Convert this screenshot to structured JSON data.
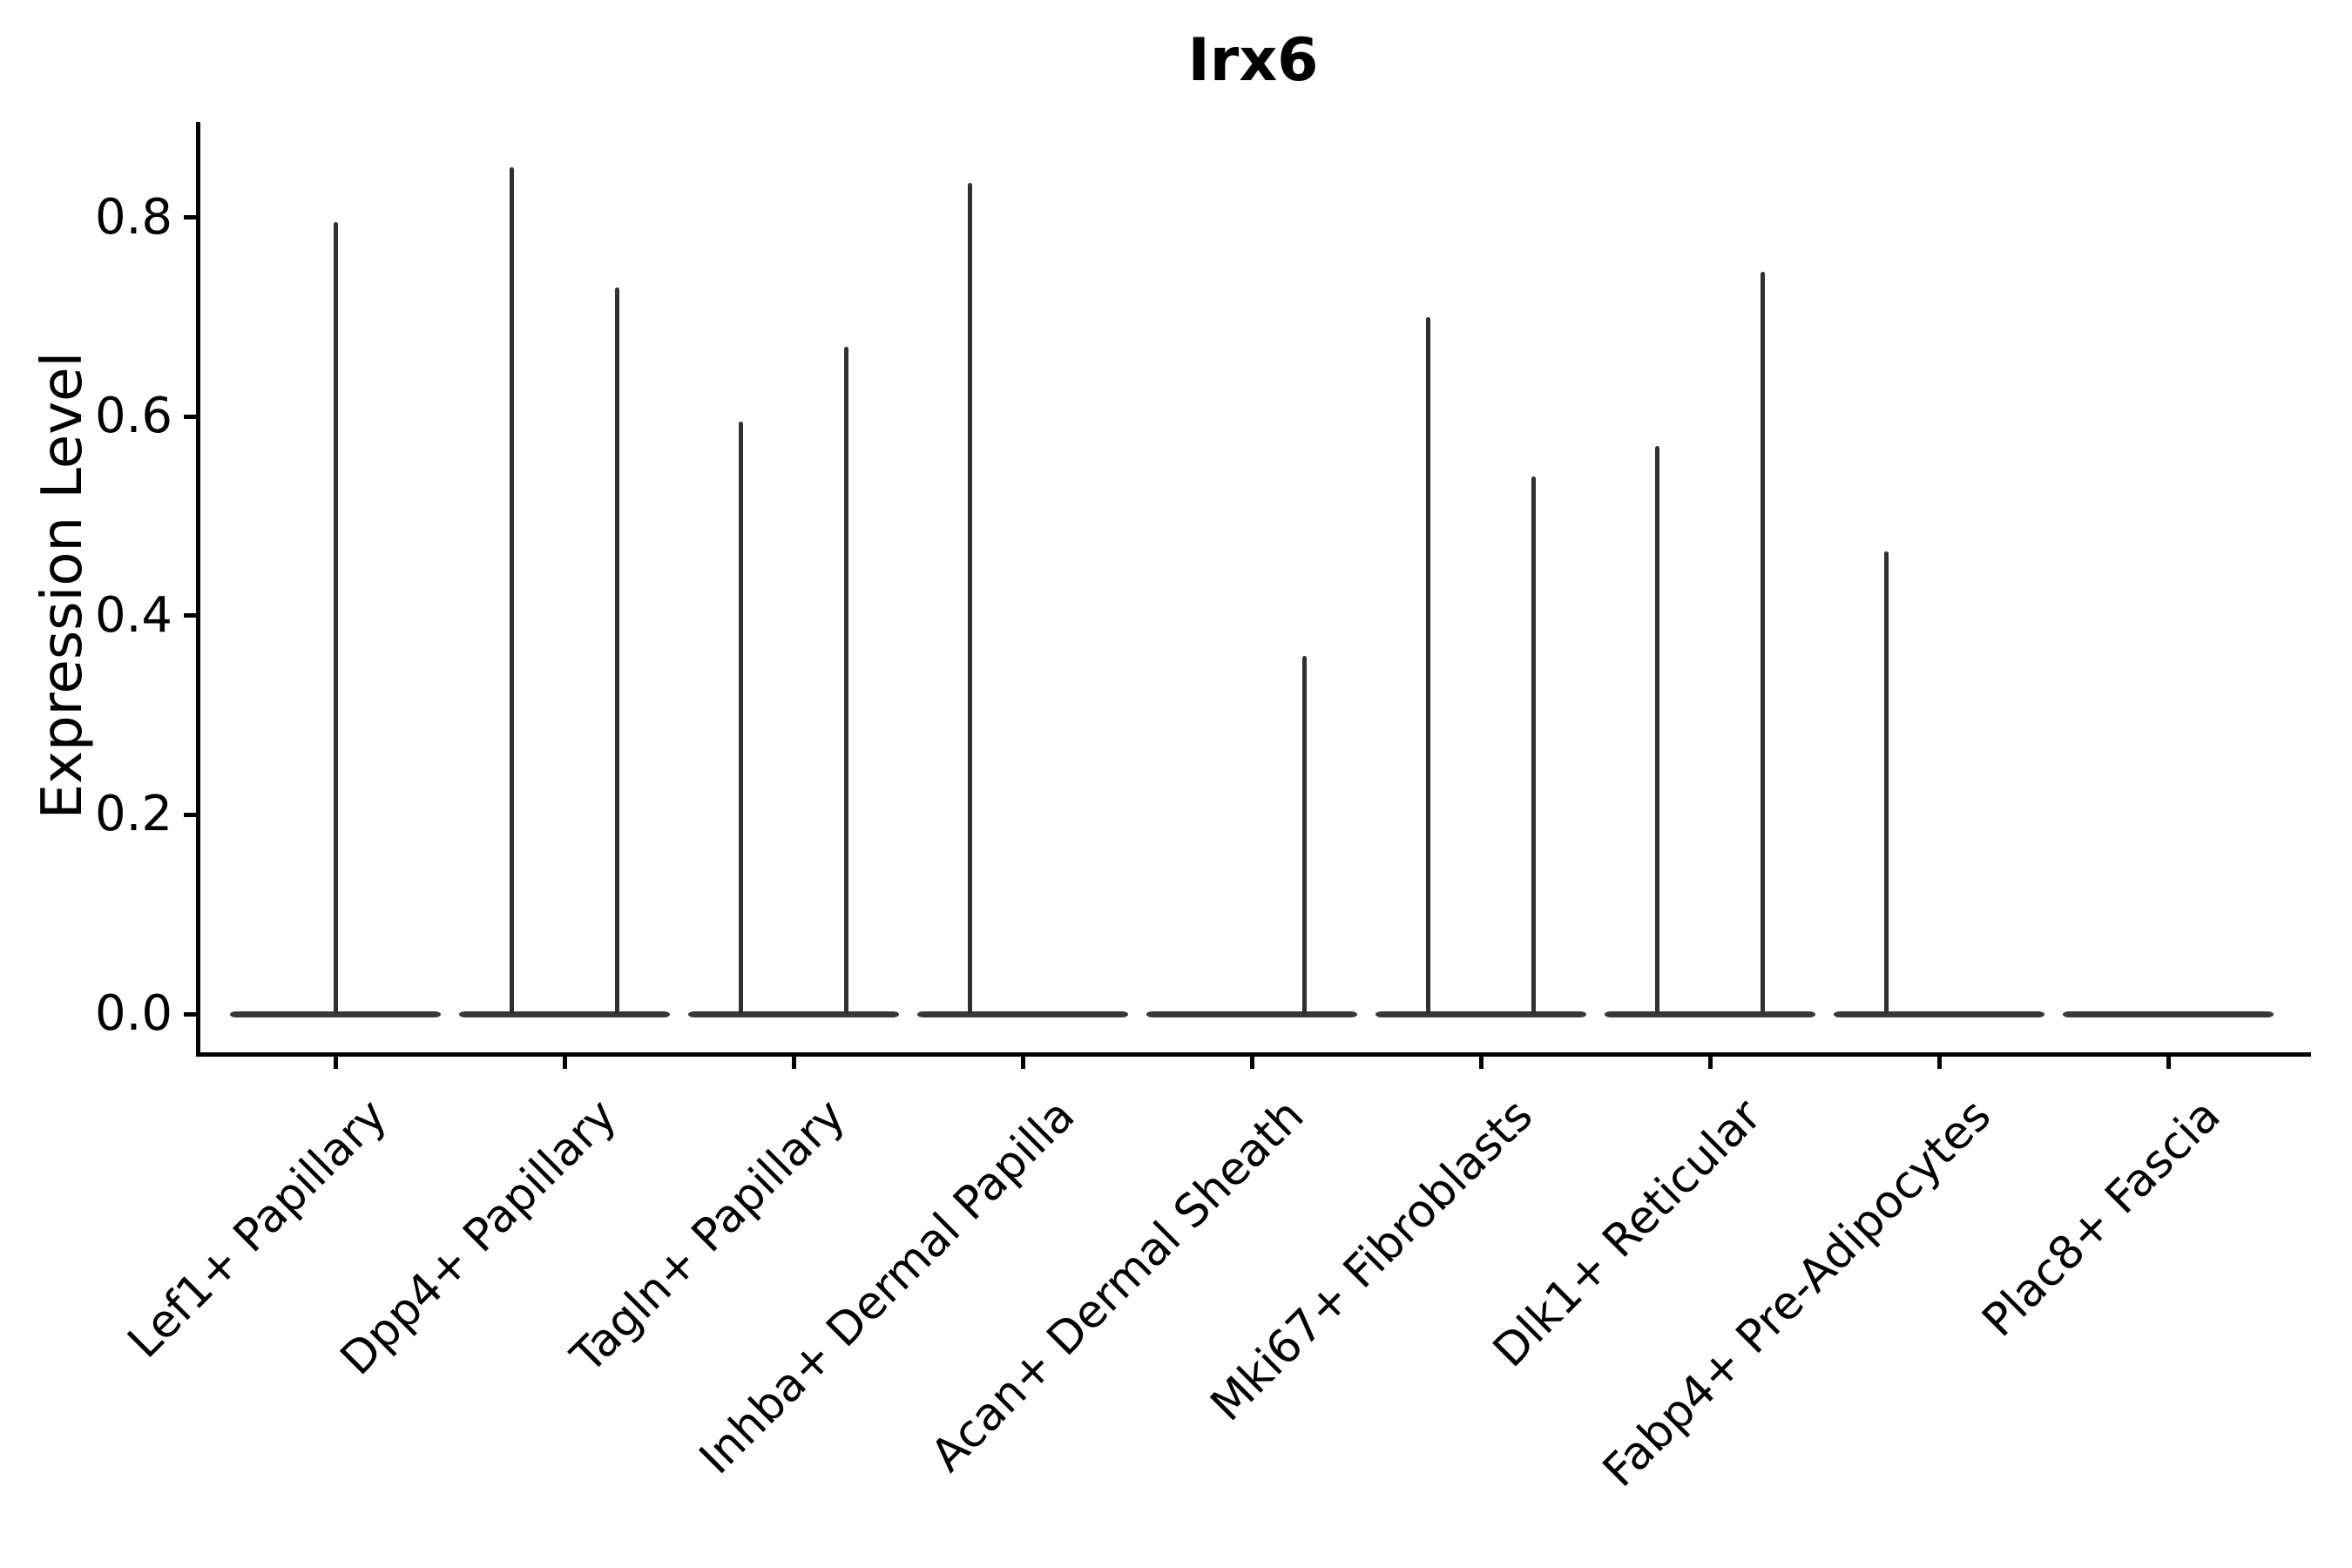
{
  "title": "Irx6",
  "ylabel": "Expression Level",
  "y_axis": {
    "tick_labels": [
      "0.0",
      "0.2",
      "0.4",
      "0.6",
      "0.8"
    ],
    "tick_values": [
      0.0,
      0.2,
      0.4,
      0.6,
      0.8
    ]
  },
  "x_axis": {
    "tick_labels": [
      "Lef1+ Papillary",
      "Dpp4+ Papillary",
      "Tagln+ Papillary",
      "Inhba+ Dermal Papilla",
      "Acan+ Dermal Sheath",
      "Mki67+ Fibroblasts",
      "Dlk1+ Reticular",
      "Fabp4+ Pre-Adipocytes",
      "Plac8+ Fascia"
    ]
  },
  "colors": {
    "violin": "#303030",
    "violin_base": "#383838",
    "axis": "#000000",
    "text": "#000000",
    "background": "#ffffff"
  },
  "chart_data": {
    "type": "violin",
    "title": "Irx6",
    "xlabel": "",
    "ylabel": "Expression Level",
    "yticks": [
      0.0,
      0.2,
      0.4,
      0.6,
      0.8
    ],
    "ylim": [
      -0.04,
      0.9
    ],
    "grid": false,
    "legend": "none",
    "note": "Single-cell expression violin plot; density is concentrated at 0 for every group (flat base bar) with a thin spike reaching the maximum expression value. Some categories contain two side-by-side (dodged/split) violins; 'full' means one full-width violin.",
    "categories": [
      {
        "label": "Lef1+ Papillary",
        "violins": [
          {
            "position": "full",
            "max": 0.795
          }
        ]
      },
      {
        "label": "Dpp4+ Papillary",
        "violins": [
          {
            "position": "left",
            "max": 0.85
          },
          {
            "position": "right",
            "max": 0.73
          }
        ]
      },
      {
        "label": "Tagln+ Papillary",
        "violins": [
          {
            "position": "left",
            "max": 0.595
          },
          {
            "position": "right",
            "max": 0.67
          }
        ]
      },
      {
        "label": "Inhba+ Dermal Papilla",
        "violins": [
          {
            "position": "left",
            "max": 0.835
          },
          {
            "position": "right",
            "max": 0.0
          }
        ]
      },
      {
        "label": "Acan+ Dermal Sheath",
        "violins": [
          {
            "position": "left",
            "max": 0.0
          },
          {
            "position": "right",
            "max": 0.36
          }
        ]
      },
      {
        "label": "Mki67+ Fibroblasts",
        "violins": [
          {
            "position": "left",
            "max": 0.7
          },
          {
            "position": "right",
            "max": 0.54
          }
        ]
      },
      {
        "label": "Dlk1+ Reticular",
        "violins": [
          {
            "position": "left",
            "max": 0.57
          },
          {
            "position": "right",
            "max": 0.745
          }
        ]
      },
      {
        "label": "Fabp4+ Pre-Adipocytes",
        "violins": [
          {
            "position": "left",
            "max": 0.465
          },
          {
            "position": "right",
            "max": 0.0
          }
        ]
      },
      {
        "label": "Plac8+ Fascia",
        "violins": [
          {
            "position": "full",
            "max": 0.0
          }
        ]
      }
    ]
  }
}
